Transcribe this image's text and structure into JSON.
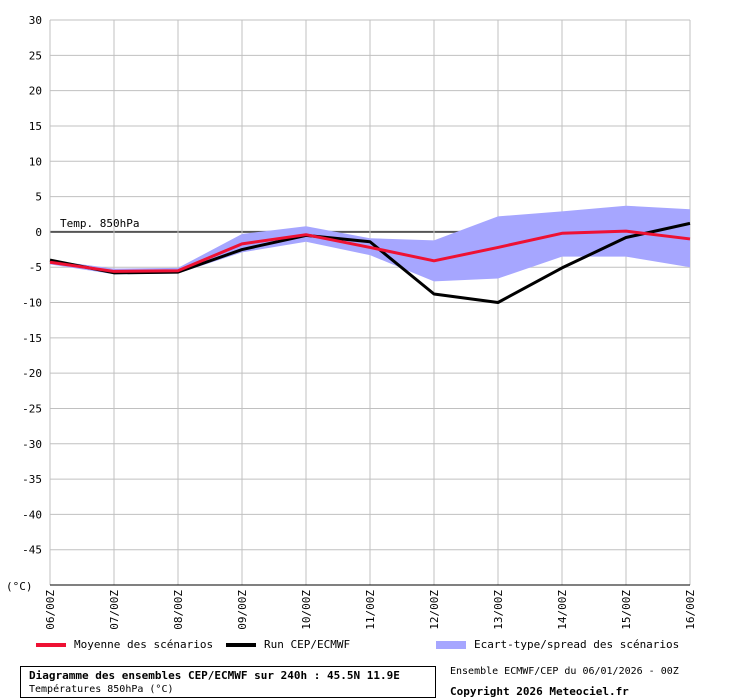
{
  "chart_data": {
    "type": "line",
    "ylabel": "(°C)",
    "ylim": [
      -50,
      30
    ],
    "yticks": [
      30,
      25,
      20,
      15,
      10,
      5,
      0,
      -5,
      -10,
      -15,
      -20,
      -25,
      -30,
      -35,
      -40,
      -45
    ],
    "categories": [
      "06/00Z",
      "07/00Z",
      "08/00Z",
      "09/00Z",
      "10/00Z",
      "11/00Z",
      "12/00Z",
      "13/00Z",
      "14/00Z",
      "15/00Z",
      "16/00Z"
    ],
    "grid": true,
    "annotation": "Temp. 850hPa",
    "series": [
      {
        "name": "Moyenne des scénarios",
        "color": "#ee1133",
        "values": [
          -4.3,
          -5.6,
          -5.5,
          -1.7,
          -0.4,
          -2.2,
          -4.1,
          -2.2,
          -0.2,
          0.1,
          -1.0
        ]
      },
      {
        "name": "Run CEP/ECMWF",
        "color": "#000000",
        "values": [
          -4.0,
          -5.8,
          -5.7,
          -2.5,
          -0.5,
          -1.4,
          -8.8,
          -10.0,
          -5.1,
          -0.8,
          1.2
        ]
      }
    ],
    "spread": {
      "name": "Ecart-type/spread des scénarios",
      "color": "#a6a6ff",
      "upper": [
        -4.0,
        -5.2,
        -5.1,
        -0.3,
        0.8,
        -0.9,
        -1.2,
        2.2,
        2.9,
        3.7,
        3.2
      ],
      "lower": [
        -4.6,
        -6.0,
        -5.9,
        -2.9,
        -1.4,
        -3.3,
        -7.0,
        -6.6,
        -3.5,
        -3.5,
        -5.0
      ]
    }
  },
  "legend": {
    "mean_label": "Moyenne des scénarios",
    "run_label": "Run CEP/ECMWF",
    "spread_label": "Ecart-type/spread des scénarios"
  },
  "footer": {
    "title": "Diagramme des ensembles CEP/ECMWF sur 240h : 45.5N 11.9E",
    "subtitle": "Températures 850hPa (°C)",
    "run_info": "Ensemble ECMWF/CEP du 06/01/2026 - 00Z",
    "copyright": "Copyright 2026 Meteociel.fr"
  }
}
